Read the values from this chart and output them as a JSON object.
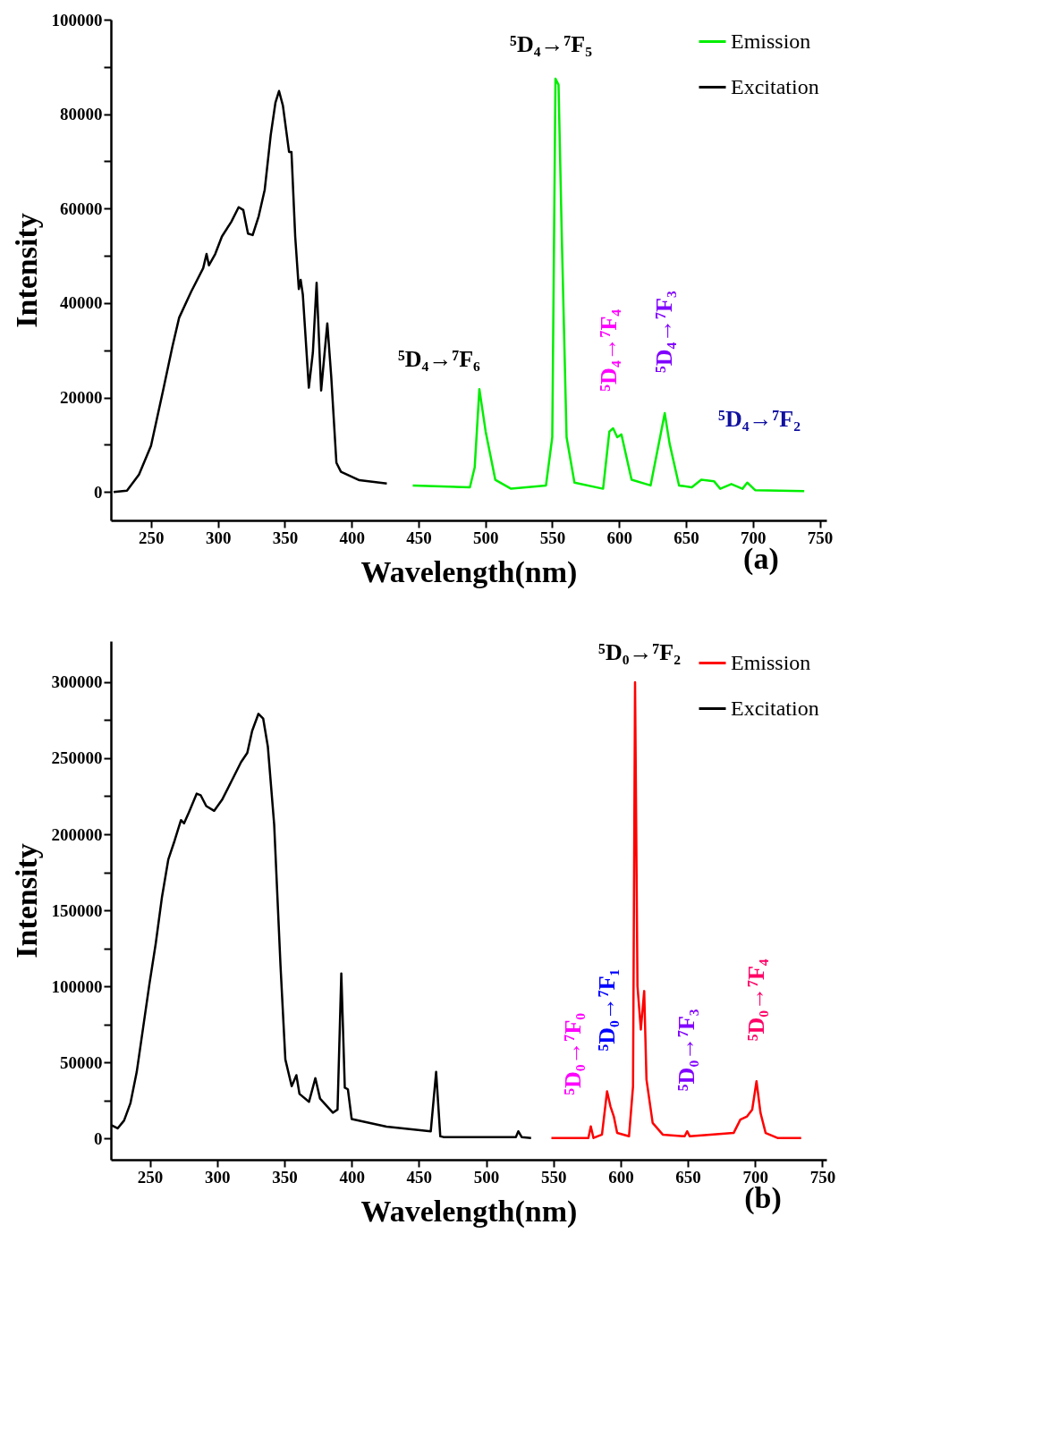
{
  "chart_data": [
    {
      "type": "line",
      "title": "(a)",
      "xlabel": "Wavelength(nm)",
      "ylabel": "Intensity",
      "xlim": [
        220,
        755
      ],
      "ylim": [
        -6000,
        100000
      ],
      "xticks": [
        250,
        300,
        350,
        400,
        450,
        500,
        550,
        600,
        650,
        700,
        750
      ],
      "yticks": [
        0,
        {
          "value": 10000,
          "label": null
        },
        20000,
        {
          "value": 30000,
          "label": null
        },
        40000,
        {
          "value": 50000,
          "label": null
        },
        60000,
        {
          "value": 70000,
          "label": null
        },
        80000,
        {
          "value": 90000,
          "label": null
        },
        100000
      ],
      "legend": "top right",
      "series": [
        {
          "name": "Emission",
          "color": "#00ee00",
          "x": [
            445.7,
            488.4,
            492,
            495.5,
            500.2,
            507.4,
            519.2,
            545.3,
            550,
            552.4,
            554.7,
            557.1,
            560.7,
            566.6,
            588,
            592.7,
            595.5,
            598.6,
            601.7,
            609.3,
            623.5,
            630.6,
            634.1,
            637.7,
            644.8,
            654.3,
            661.4,
            670.9,
            675.6,
            683.9,
            692.2,
            695.8,
            701.7,
            738.4
          ],
          "values": [
            1400,
            1000,
            5200,
            21800,
            12800,
            2600,
            700,
            1400,
            11600,
            87500,
            86200,
            54300,
            11600,
            2000,
            700,
            12800,
            13500,
            11600,
            12200,
            2600,
            1400,
            11600,
            16700,
            10300,
            1400,
            1000,
            2600,
            2300,
            700,
            1700,
            700,
            2000,
            400,
            200
          ]
        },
        {
          "name": "Excitation",
          "color": "#000000",
          "x": [
            222,
            232,
            241,
            250,
            259,
            266,
            271,
            280,
            289,
            291.5,
            293.3,
            298,
            303,
            310,
            315.5,
            319,
            322.5,
            326,
            330.5,
            335,
            339.5,
            343,
            345.7,
            348.6,
            353.2,
            355,
            357.8,
            360.5,
            361.9,
            363.5,
            368,
            371,
            373.8,
            377.2,
            381.8,
            384.7,
            388.6,
            392,
            405.8,
            426.3
          ],
          "values": [
            0,
            300,
            3700,
            9800,
            21500,
            30800,
            36900,
            42400,
            47400,
            50400,
            48000,
            50400,
            54100,
            57200,
            60300,
            59700,
            54700,
            54400,
            58400,
            64000,
            75600,
            82400,
            84900,
            81800,
            72000,
            72000,
            54100,
            43000,
            44900,
            41800,
            22100,
            29500,
            44300,
            21500,
            35700,
            24600,
            6200,
            4300,
            2500,
            1800
          ]
        }
      ],
      "annotations": [
        {
          "text": "⁵D₄→⁷F₅",
          "x": 552.4,
          "y": 87500
        },
        {
          "text": "⁵D₄→⁷F₆",
          "x": 495.5,
          "y": 21800
        },
        {
          "text": "⁵D₄→⁷F₄",
          "x": 592.7,
          "y": 12800
        },
        {
          "text": "⁵D₄→⁷F₃",
          "x": 634.1,
          "y": 16700
        },
        {
          "text": "⁵D₄→⁷F₂",
          "x": 661.4,
          "y": 2600
        }
      ]
    },
    {
      "type": "line",
      "title": "(b)",
      "xlabel": "Wavelength(nm)",
      "ylabel": "Intensity",
      "xlim": [
        221,
        753
      ],
      "ylim": [
        -14000,
        327000
      ],
      "xticks": [
        250,
        300,
        350,
        400,
        450,
        500,
        550,
        600,
        650,
        700,
        750
      ],
      "yticks": [
        0,
        {
          "value": 25000,
          "label": null
        },
        50000,
        {
          "value": 75000,
          "label": null
        },
        100000,
        {
          "value": 125000,
          "label": null
        },
        150000,
        {
          "value": 175000,
          "label": null
        },
        200000,
        {
          "value": 225000,
          "label": null
        },
        250000,
        {
          "value": 275000,
          "label": null
        },
        300000
      ],
      "legend": "top right",
      "series": [
        {
          "name": "Emission",
          "color": "#ff0000",
          "x": [
            548.5,
            576,
            577.8,
            579.8,
            586.1,
            589.9,
            592.4,
            594.9,
            597.4,
            606.2,
            609.2,
            610.7,
            612.5,
            615,
            617.5,
            619.2,
            623.8,
            631.3,
            647.6,
            649.4,
            651.4,
            684,
            689,
            694,
            697.8,
            701,
            704,
            707.8,
            716.6,
            734.2
          ],
          "values": [
            300,
            300,
            7900,
            300,
            2500,
            31000,
            21100,
            14500,
            3600,
            1400,
            34300,
            299900,
            100200,
            71600,
            96900,
            38700,
            10200,
            2500,
            1400,
            4700,
            1400,
            3600,
            12400,
            14500,
            18900,
            37600,
            16700,
            3600,
            300,
            300
          ]
        },
        {
          "name": "Excitation",
          "color": "#000000",
          "x": [
            221.4,
            226,
            230.8,
            235.5,
            240.2,
            244.9,
            249.6,
            254.3,
            259,
            263.7,
            268.4,
            273.1,
            275.4,
            279,
            284.8,
            287.7,
            291.9,
            297.8,
            303.6,
            310.7,
            317.7,
            322.4,
            326,
            330.7,
            334.2,
            337.7,
            342.4,
            347.1,
            350.7,
            355.4,
            358.9,
            361.2,
            368.3,
            373,
            376.5,
            386,
            389.5,
            392.3,
            394.9,
            397.2,
            400,
            425.9,
            458.8,
            462.8,
            465.9,
            468.2,
            522.1,
            523.9,
            526.4,
            533.4
          ],
          "values": [
            8700,
            6600,
            11800,
            23100,
            43700,
            72500,
            101300,
            128000,
            158900,
            183500,
            195900,
            209300,
            207200,
            214400,
            226700,
            225700,
            218500,
            215400,
            222600,
            235000,
            247300,
            253500,
            267900,
            279200,
            276100,
            257600,
            206200,
            113600,
            51900,
            34400,
            41600,
            29300,
            24100,
            39600,
            26200,
            16900,
            19000,
            108500,
            33400,
            32300,
            12800,
            7700,
            4600,
            43700,
            1400,
            900,
            900,
            4700,
            900,
            300
          ]
        }
      ],
      "annotations": [
        {
          "text": "⁵D₀→⁷F₂",
          "x": 610.7,
          "y": 299900
        },
        {
          "text": "⁵D₀→⁷F₀",
          "x": 577.8,
          "y": 7900
        },
        {
          "text": "⁵D₀→⁷F₁",
          "x": 589.9,
          "y": 31000
        },
        {
          "text": "⁵D₀→⁷F₃",
          "x": 649.4,
          "y": 4700
        },
        {
          "text": "⁵D₀→⁷F₄",
          "x": 701,
          "y": 37600
        }
      ]
    }
  ]
}
